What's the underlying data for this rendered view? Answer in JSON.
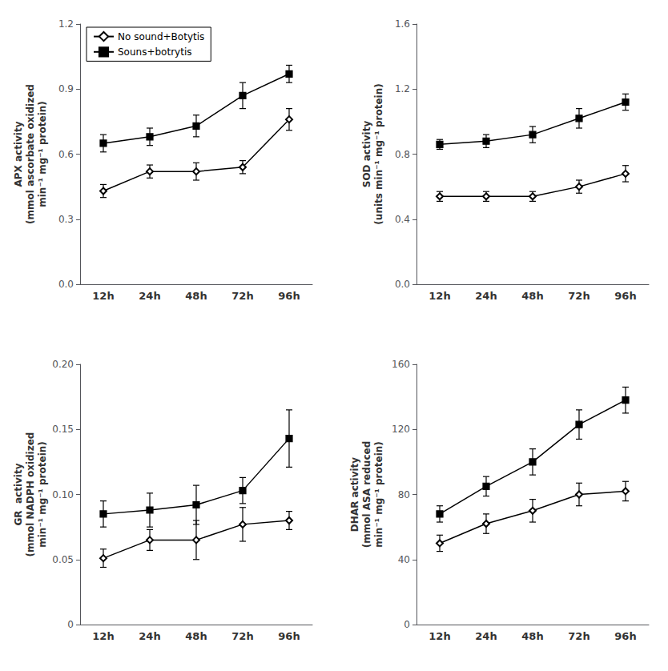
{
  "chart_data": [
    {
      "type": "line",
      "y_label": "APX activity\n(mmol ascorbate oxidized\nmin⁻¹ mg⁻¹ protein)",
      "categories": [
        "12h",
        "24h",
        "48h",
        "72h",
        "96h"
      ],
      "series": [
        {
          "name": "No sound+Botytis",
          "color": "#000000",
          "marker": "diamond",
          "values": [
            0.43,
            0.52,
            0.52,
            0.54,
            0.76
          ],
          "errors": [
            0.03,
            0.03,
            0.04,
            0.03,
            0.05
          ]
        },
        {
          "name": "Souns+botrytis",
          "color": "#000000",
          "marker": "square",
          "values": [
            0.65,
            0.68,
            0.73,
            0.87,
            0.97
          ],
          "errors": [
            0.04,
            0.04,
            0.05,
            0.06,
            0.04
          ]
        }
      ],
      "ylim": [
        0,
        1.2
      ],
      "yticks": [
        {
          "value": 0,
          "label": "0.0"
        },
        0.3,
        0.6,
        0.9,
        1.2
      ],
      "grid": false,
      "legend": "upper left"
    },
    {
      "type": "line",
      "y_label": "SOD activity\n(units min⁻¹ mg⁻¹ protein)",
      "categories": [
        "12h",
        "24h",
        "48h",
        "72h",
        "96h"
      ],
      "series": [
        {
          "name": "No sound+Botytis",
          "color": "#000000",
          "marker": "diamond",
          "values": [
            0.54,
            0.54,
            0.54,
            0.6,
            0.68
          ],
          "errors": [
            0.03,
            0.03,
            0.03,
            0.04,
            0.05
          ]
        },
        {
          "name": "Souns+botrytis",
          "color": "#000000",
          "marker": "square",
          "values": [
            0.86,
            0.88,
            0.92,
            1.02,
            1.12
          ],
          "errors": [
            0.03,
            0.04,
            0.05,
            0.06,
            0.05
          ]
        }
      ],
      "ylim": [
        0,
        1.6
      ],
      "yticks": [
        {
          "value": 0,
          "label": "0.0"
        },
        0.4,
        0.8,
        1.2,
        1.6
      ],
      "grid": false
    },
    {
      "type": "line",
      "y_label": "GR  activity\n(mmol NADPH oxidized\nmin⁻¹ mg⁻¹ protein)",
      "categories": [
        "12h",
        "24h",
        "48h",
        "72h",
        "96h"
      ],
      "series": [
        {
          "name": "No sound+Botytis",
          "color": "#000000",
          "marker": "diamond",
          "values": [
            0.051,
            0.065,
            0.065,
            0.077,
            0.08
          ],
          "errors": [
            0.007,
            0.008,
            0.015,
            0.013,
            0.007
          ]
        },
        {
          "name": "Souns+botrytis",
          "color": "#000000",
          "marker": "square",
          "values": [
            0.085,
            0.088,
            0.092,
            0.103,
            0.143
          ],
          "errors": [
            0.01,
            0.013,
            0.015,
            0.01,
            0.022
          ]
        }
      ],
      "ylim": [
        0,
        0.2
      ],
      "yticks": [
        0,
        0.05,
        {
          "value": 0.1,
          "label": "0.10"
        },
        0.15,
        {
          "value": 0.2,
          "label": "0.20"
        }
      ],
      "grid": false
    },
    {
      "type": "line",
      "y_label": "DHAR activity\n(mmol ASA reduced\nmin⁻¹ mg⁻¹ protein)",
      "categories": [
        "12h",
        "24h",
        "48h",
        "72h",
        "96h"
      ],
      "series": [
        {
          "name": "No sound+Botytis",
          "color": "#000000",
          "marker": "diamond",
          "values": [
            50,
            62,
            70,
            80,
            82
          ],
          "errors": [
            5,
            6,
            7,
            7,
            6
          ]
        },
        {
          "name": "Souns+botrytis",
          "color": "#000000",
          "marker": "square",
          "values": [
            68,
            85,
            100,
            123,
            138
          ],
          "errors": [
            5,
            6,
            8,
            9,
            8
          ]
        }
      ],
      "ylim": [
        0,
        160
      ],
      "yticks": [
        0,
        40,
        80,
        120,
        160
      ],
      "grid": false
    }
  ]
}
